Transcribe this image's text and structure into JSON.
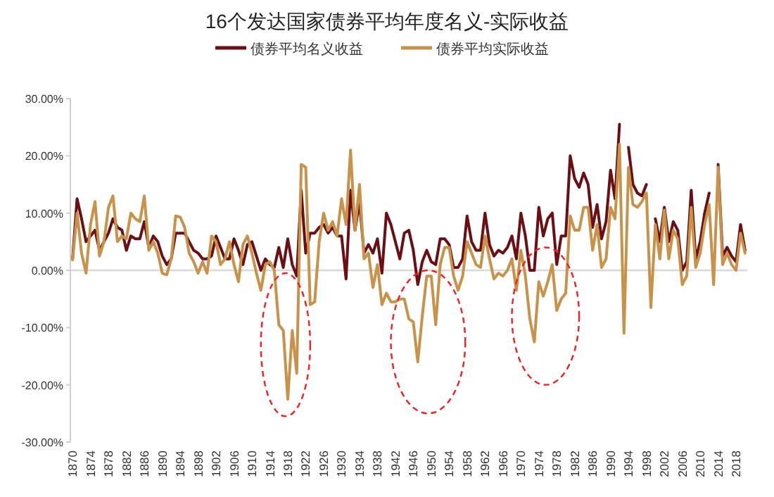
{
  "chart_data": {
    "type": "line",
    "title": "16个发达国家债券平均年度名义-实际收益",
    "x": [
      1870,
      1871,
      1872,
      1873,
      1874,
      1875,
      1876,
      1877,
      1878,
      1879,
      1880,
      1881,
      1882,
      1883,
      1884,
      1885,
      1886,
      1887,
      1888,
      1889,
      1890,
      1891,
      1892,
      1893,
      1894,
      1895,
      1896,
      1897,
      1898,
      1899,
      1900,
      1901,
      1902,
      1903,
      1904,
      1905,
      1906,
      1907,
      1908,
      1909,
      1910,
      1911,
      1912,
      1913,
      1914,
      1915,
      1916,
      1917,
      1918,
      1919,
      1920,
      1921,
      1922,
      1923,
      1924,
      1925,
      1926,
      1927,
      1928,
      1929,
      1930,
      1931,
      1932,
      1933,
      1934,
      1935,
      1936,
      1937,
      1938,
      1939,
      1940,
      1941,
      1942,
      1943,
      1944,
      1945,
      1946,
      1947,
      1948,
      1949,
      1950,
      1951,
      1952,
      1953,
      1954,
      1955,
      1956,
      1957,
      1958,
      1959,
      1960,
      1961,
      1962,
      1963,
      1964,
      1965,
      1966,
      1967,
      1968,
      1969,
      1970,
      1971,
      1972,
      1973,
      1974,
      1975,
      1976,
      1977,
      1978,
      1979,
      1980,
      1981,
      1982,
      1983,
      1984,
      1985,
      1986,
      1987,
      1988,
      1989,
      1990,
      1991,
      1992,
      1993,
      1994,
      1995,
      1996,
      1997,
      1998,
      1999,
      2000,
      2001,
      2002,
      2003,
      2004,
      2005,
      2006,
      2007,
      2008,
      2009,
      2010,
      2011,
      2012,
      2013,
      2014,
      2015,
      2016,
      2017,
      2018,
      2019,
      2020
    ],
    "series": [
      {
        "name": "债券平均名义收益",
        "color": "#6b0f14",
        "values": [
          2,
          12.5,
          9,
          5,
          6,
          7,
          3.5,
          5,
          6.5,
          9,
          7.5,
          7,
          3.5,
          6,
          5.5,
          5.5,
          8.5,
          4,
          6,
          5,
          2.5,
          1,
          2,
          6.5,
          6.5,
          6.5,
          5,
          3.5,
          3,
          2,
          2,
          2.5,
          6,
          4,
          2,
          2,
          5.5,
          3.5,
          1,
          4.5,
          5,
          2.5,
          0,
          2,
          1,
          0.5,
          4,
          0.5,
          5.5,
          1,
          -1,
          14,
          3,
          6.5,
          6.5,
          7.5,
          8,
          6.5,
          7.5,
          6,
          6,
          -1.5,
          14,
          7,
          12,
          3,
          4.5,
          3,
          5.5,
          -0.5,
          10,
          8,
          5,
          2,
          6.5,
          7,
          3.5,
          -2.5,
          1.5,
          3.5,
          1.5,
          1,
          5.5,
          5.5,
          4.5,
          0.5,
          0.5,
          2,
          9.5,
          5,
          3.5,
          3.5,
          10,
          4.5,
          2.5,
          3.5,
          3,
          4,
          6,
          2,
          10,
          6,
          0,
          0,
          11,
          6,
          9,
          10,
          1,
          6,
          6,
          20,
          16,
          14.5,
          17,
          15,
          7.5,
          11.5,
          5.5,
          8.5,
          17.5,
          12.5,
          25.5,
          null,
          21.5,
          15,
          13.5,
          13,
          15,
          null,
          9,
          5,
          11,
          5,
          8.5,
          7,
          0,
          1.5,
          14,
          2,
          5,
          10,
          13.5,
          null,
          18.5,
          2.5,
          4,
          2.5,
          1.5,
          8,
          3.5
        ]
      },
      {
        "name": "债券平均实际收益",
        "color": "#c8924a",
        "values": [
          1.8,
          10,
          3,
          -0.5,
          8,
          12,
          2.5,
          5,
          11,
          13,
          5,
          6,
          5.5,
          10,
          9,
          8.5,
          13,
          3.5,
          5,
          3,
          -0.5,
          -0.8,
          2,
          9.5,
          9.3,
          7.5,
          3,
          1.5,
          -0.5,
          1.5,
          -0.5,
          6,
          5,
          1,
          2,
          5,
          1,
          -2,
          4.5,
          6,
          3,
          -0.5,
          -3.5,
          1,
          1.5,
          0,
          -9.5,
          -10.5,
          -22.5,
          -10.5,
          -18,
          18.5,
          18,
          -6,
          -5.5,
          5,
          10,
          7,
          8.5,
          6,
          12.5,
          8,
          21,
          7,
          15,
          2,
          3,
          -3,
          1,
          -6,
          -4,
          -5.5,
          -5.5,
          -5,
          -5,
          -8.5,
          -9,
          -16,
          -8,
          -1,
          -1,
          -9.5,
          1,
          4,
          4,
          -1,
          -3.5,
          -1,
          5,
          3,
          1,
          0.5,
          6,
          2,
          -1.5,
          -0.5,
          -1,
          0,
          2,
          -3.5,
          3.5,
          -1,
          -8.5,
          -12.5,
          -2,
          -4.5,
          -2,
          1,
          -7,
          -5,
          -4,
          9.5,
          7,
          7,
          11,
          11,
          3.5,
          8,
          0.5,
          2,
          11,
          9,
          22,
          -11,
          18,
          11.5,
          11,
          12,
          13.5,
          -6.5,
          8,
          2,
          10.5,
          2,
          7,
          5.5,
          -2.5,
          -1,
          11,
          0.5,
          3,
          8,
          11.5,
          -2.5,
          18,
          1,
          3,
          1,
          0,
          6.5,
          3
        ]
      }
    ],
    "xlim": [
      1869.5,
      2020.5
    ],
    "xticks": [
      1870,
      1874,
      1878,
      1882,
      1886,
      1890,
      1894,
      1898,
      1902,
      1906,
      1910,
      1914,
      1918,
      1922,
      1926,
      1930,
      1934,
      1938,
      1942,
      1946,
      1950,
      1954,
      1958,
      1962,
      1966,
      1970,
      1974,
      1978,
      1982,
      1986,
      1990,
      1994,
      1998,
      2002,
      2006,
      2010,
      2014,
      2018
    ],
    "ylim": [
      -30,
      30
    ],
    "yticks": [
      {
        "value": 30,
        "label": "30.00%"
      },
      {
        "value": 20,
        "label": "20.00%"
      },
      {
        "value": 10,
        "label": "10.00%"
      },
      {
        "value": 0,
        "label": "0.00%"
      },
      {
        "value": -10,
        "label": "-10.00%"
      },
      {
        "value": -20,
        "label": "-20.00%"
      },
      {
        "value": -30,
        "label": "-30.00%"
      }
    ],
    "legend": "top",
    "marker": "none",
    "line_style": "solid"
  }
}
